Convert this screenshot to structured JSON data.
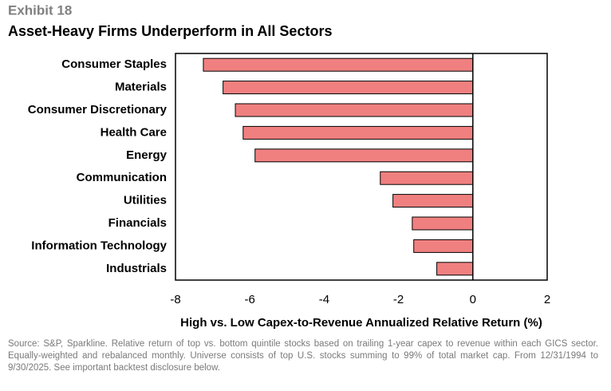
{
  "exhibit": "Exhibit 18",
  "chart_data": {
    "type": "barh",
    "title": "Asset-Heavy Firms Underperform in All Sectors",
    "categories": [
      "Consumer Staples",
      "Materials",
      "Consumer Discretionary",
      "Health Care",
      "Energy",
      "Communication",
      "Utilities",
      "Financials",
      "Information Technology",
      "Industrials"
    ],
    "values": [
      -7.25,
      -6.72,
      -6.39,
      -6.18,
      -5.86,
      -2.49,
      -2.15,
      -1.63,
      -1.59,
      -0.97
    ],
    "color": "#f08080",
    "xlim": [
      -8,
      2
    ],
    "xticks": [
      -8,
      -6,
      -4,
      -2,
      0,
      2
    ],
    "xlabel": "High vs. Low Capex-to-Revenue Annualized Relative Return (%)",
    "grid": false
  },
  "source": "Source: S&P, Sparkline. Relative return of top vs. bottom quintile stocks based on trailing 1-year capex to revenue within each GICS sector. Equally-weighted and rebalanced monthly. Universe consists of top U.S. stocks summing to 99% of total market cap. From 12/31/1994 to 9/30/2025. See important backtest disclosure below."
}
